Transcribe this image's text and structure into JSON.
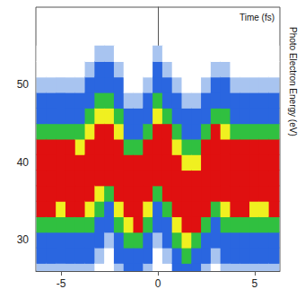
{
  "chart_data": {
    "type": "heatmap",
    "xlabel": "Time (fs)",
    "ylabel": "Photo Electron Energy (eV)",
    "x": [
      -6,
      -5.5,
      -5,
      -4.5,
      -4,
      -3.5,
      -3,
      -2.5,
      -2,
      -1.5,
      -1,
      -0.5,
      0,
      0.5,
      1,
      1.5,
      2,
      2.5,
      3,
      3.5,
      4,
      4.5,
      5,
      5.5,
      6
    ],
    "y": [
      26,
      28,
      30,
      32,
      34,
      36,
      38,
      40,
      42,
      44,
      46,
      48,
      50,
      52,
      54
    ],
    "values": [
      [
        1,
        3,
        3,
        5,
        9,
        9,
        9,
        9,
        9,
        5,
        3,
        3,
        1,
        0,
        0
      ],
      [
        1,
        3,
        3,
        5,
        9,
        9,
        9,
        9,
        9,
        5,
        3,
        3,
        1,
        0,
        0
      ],
      [
        1,
        3,
        3,
        5,
        7,
        9,
        9,
        9,
        9,
        5,
        3,
        3,
        1,
        0,
        0
      ],
      [
        1,
        3,
        3,
        5,
        9,
        9,
        9,
        9,
        9,
        5,
        3,
        3,
        1,
        0,
        0
      ],
      [
        1,
        3,
        3,
        5,
        9,
        9,
        9,
        9,
        7,
        5,
        3,
        3,
        1,
        0,
        0
      ],
      [
        1,
        3,
        3,
        5,
        7,
        9,
        9,
        9,
        9,
        7,
        5,
        3,
        3,
        1,
        0
      ],
      [
        0,
        1,
        3,
        3,
        5,
        7,
        9,
        9,
        9,
        9,
        7,
        5,
        3,
        3,
        1
      ],
      [
        0,
        0,
        1,
        3,
        3,
        5,
        9,
        9,
        9,
        9,
        7,
        5,
        3,
        3,
        1
      ],
      [
        1,
        3,
        3,
        5,
        7,
        9,
        9,
        9,
        9,
        7,
        5,
        3,
        3,
        1,
        0
      ],
      [
        3,
        3,
        5,
        7,
        9,
        9,
        9,
        9,
        5,
        3,
        3,
        1,
        0,
        0,
        0
      ],
      [
        3,
        3,
        5,
        9,
        9,
        9,
        9,
        9,
        5,
        3,
        3,
        1,
        0,
        0,
        0
      ],
      [
        1,
        3,
        3,
        5,
        7,
        9,
        9,
        9,
        9,
        5,
        3,
        3,
        1,
        0,
        0
      ],
      [
        0,
        0,
        1,
        3,
        3,
        5,
        9,
        9,
        9,
        9,
        7,
        5,
        3,
        3,
        1
      ],
      [
        0,
        1,
        3,
        3,
        5,
        9,
        9,
        9,
        9,
        9,
        5,
        3,
        3,
        1,
        0
      ],
      [
        3,
        3,
        5,
        7,
        9,
        9,
        9,
        9,
        7,
        5,
        3,
        3,
        1,
        0,
        0
      ],
      [
        3,
        5,
        7,
        9,
        9,
        9,
        9,
        7,
        5,
        3,
        3,
        1,
        0,
        0,
        0
      ],
      [
        3,
        3,
        5,
        9,
        9,
        9,
        9,
        7,
        5,
        3,
        3,
        1,
        0,
        0,
        0
      ],
      [
        1,
        3,
        3,
        5,
        9,
        9,
        9,
        9,
        9,
        5,
        3,
        3,
        1,
        0,
        0
      ],
      [
        0,
        1,
        3,
        3,
        5,
        9,
        9,
        9,
        9,
        9,
        5,
        3,
        3,
        1,
        0
      ],
      [
        1,
        3,
        3,
        5,
        7,
        9,
        9,
        9,
        9,
        7,
        5,
        3,
        3,
        1,
        0
      ],
      [
        1,
        3,
        3,
        5,
        9,
        9,
        9,
        9,
        9,
        5,
        3,
        3,
        1,
        0,
        0
      ],
      [
        1,
        3,
        3,
        5,
        9,
        9,
        9,
        9,
        9,
        5,
        3,
        3,
        1,
        0,
        0
      ],
      [
        1,
        3,
        3,
        5,
        7,
        9,
        9,
        9,
        9,
        5,
        3,
        3,
        1,
        0,
        0
      ],
      [
        1,
        3,
        3,
        5,
        7,
        9,
        9,
        9,
        9,
        5,
        3,
        3,
        1,
        0,
        0
      ],
      [
        1,
        3,
        3,
        5,
        9,
        9,
        9,
        9,
        9,
        5,
        3,
        3,
        1,
        0,
        0
      ]
    ],
    "zlim": [
      0,
      9
    ],
    "colors": [
      "#ffffff",
      "#a8c4f0",
      "#1a3fd0",
      "#2a66e0",
      "#20b8d0",
      "#30c040",
      "#9ad830",
      "#f0f020",
      "#f07818",
      "#e01010"
    ],
    "xlim": [
      -6.3,
      6.3
    ],
    "ylim": [
      26,
      60
    ],
    "xticks": [
      -5,
      0,
      5
    ],
    "yticks": [
      30,
      40,
      50
    ],
    "grid": false
  }
}
